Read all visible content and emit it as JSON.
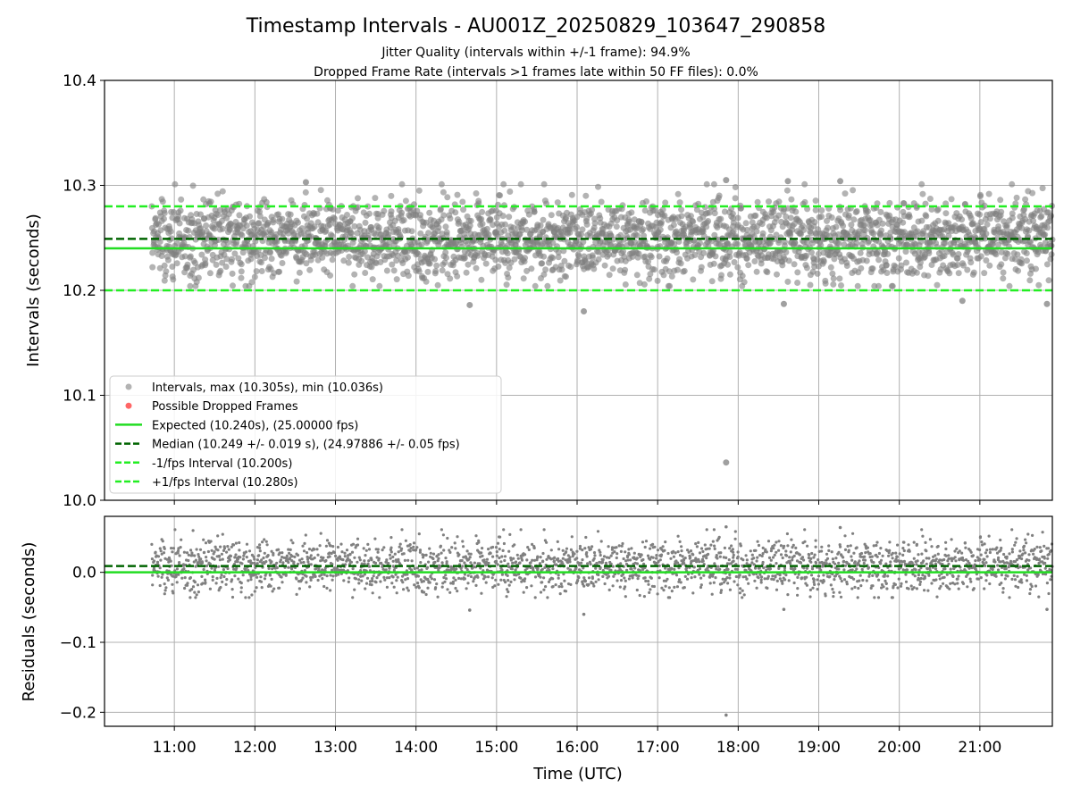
{
  "header": {
    "title": "Timestamp Intervals - AU001Z_20250829_103647_290858",
    "subtitle_1": "Jitter Quality (intervals within +/-1 frame): 94.9%",
    "subtitle_2": "Dropped Frame Rate (intervals >1 frames late within 50 FF files): 0.0%"
  },
  "colors": {
    "points": "#808080",
    "dropped": "#ff0000",
    "expected": "#22dd22",
    "median": "#006400",
    "fps_band": "#22ee22",
    "grid": "#b0b0b0"
  },
  "chart_data": [
    {
      "type": "scatter",
      "ylabel": "Intervals (seconds)",
      "ylim": [
        10.0,
        10.4
      ],
      "yticks": [
        "10.0",
        "10.1",
        "10.2",
        "10.3",
        "10.4"
      ],
      "xlim_hours": [
        10.133,
        21.9
      ],
      "data_x_range_hours": [
        10.72,
        21.9
      ],
      "grid": true,
      "legend_position": "lower-left",
      "legend": [
        {
          "label": "Intervals, max (10.305s), min (10.036s)",
          "kind": "point",
          "color": "#808080"
        },
        {
          "label": "Possible Dropped Frames",
          "kind": "point",
          "color": "#ff0000"
        },
        {
          "label": "Expected (10.240s), (25.00000 fps)",
          "kind": "line",
          "color": "#22dd22"
        },
        {
          "label": "Median (10.249 +/- 0.019 s), (24.97886 +/- 0.05 fps)",
          "kind": "dashed",
          "color": "#006400"
        },
        {
          "label": "-1/fps Interval (10.200s)",
          "kind": "dashed",
          "color": "#22ee22"
        },
        {
          "label": "+1/fps Interval (10.280s)",
          "kind": "dashed",
          "color": "#22ee22"
        }
      ],
      "reference_lines": {
        "expected": 10.24,
        "median": 10.249,
        "minus_1_fps": 10.2,
        "plus_1_fps": 10.28
      },
      "series": [
        {
          "name": "Intervals, max (10.305s), min (10.036s)",
          "max": 10.305,
          "min": 10.036,
          "center": 10.249,
          "spread": 0.019
        }
      ],
      "outliers": [
        {
          "x": "17:51",
          "y": 10.036
        },
        {
          "x": "16:05",
          "y": 10.18
        },
        {
          "x": "14:40",
          "y": 10.186
        },
        {
          "x": "18:34",
          "y": 10.187
        },
        {
          "x": "21:50",
          "y": 10.187
        },
        {
          "x": "20:47",
          "y": 10.19
        },
        {
          "x": "17:51",
          "y": 10.305
        },
        {
          "x": "18:37",
          "y": 10.304
        },
        {
          "x": "19:16",
          "y": 10.304
        },
        {
          "x": "12:38",
          "y": 10.303
        }
      ]
    },
    {
      "type": "scatter",
      "xlabel": "Time (UTC)",
      "ylabel": "Residuals (seconds)",
      "ylim": [
        -0.22,
        0.08
      ],
      "yticks": [
        "−0.2",
        "−0.1",
        "0.0"
      ],
      "xticks": [
        "11:00",
        "12:00",
        "13:00",
        "14:00",
        "15:00",
        "16:00",
        "17:00",
        "18:00",
        "19:00",
        "20:00",
        "21:00"
      ],
      "grid": true,
      "reference_lines": {
        "zero": 0.0,
        "median_offset": 0.009
      },
      "series": [
        {
          "name": "Residuals",
          "max": 0.065,
          "min": -0.204,
          "center": 0.009,
          "spread": 0.019
        }
      ],
      "outliers": [
        {
          "x": "17:51",
          "y": -0.204
        },
        {
          "x": "16:05",
          "y": -0.06
        },
        {
          "x": "14:40",
          "y": -0.054
        },
        {
          "x": "18:34",
          "y": -0.053
        },
        {
          "x": "21:50",
          "y": -0.053
        },
        {
          "x": "17:51",
          "y": 0.065
        },
        {
          "x": "19:16",
          "y": 0.064
        }
      ]
    }
  ]
}
